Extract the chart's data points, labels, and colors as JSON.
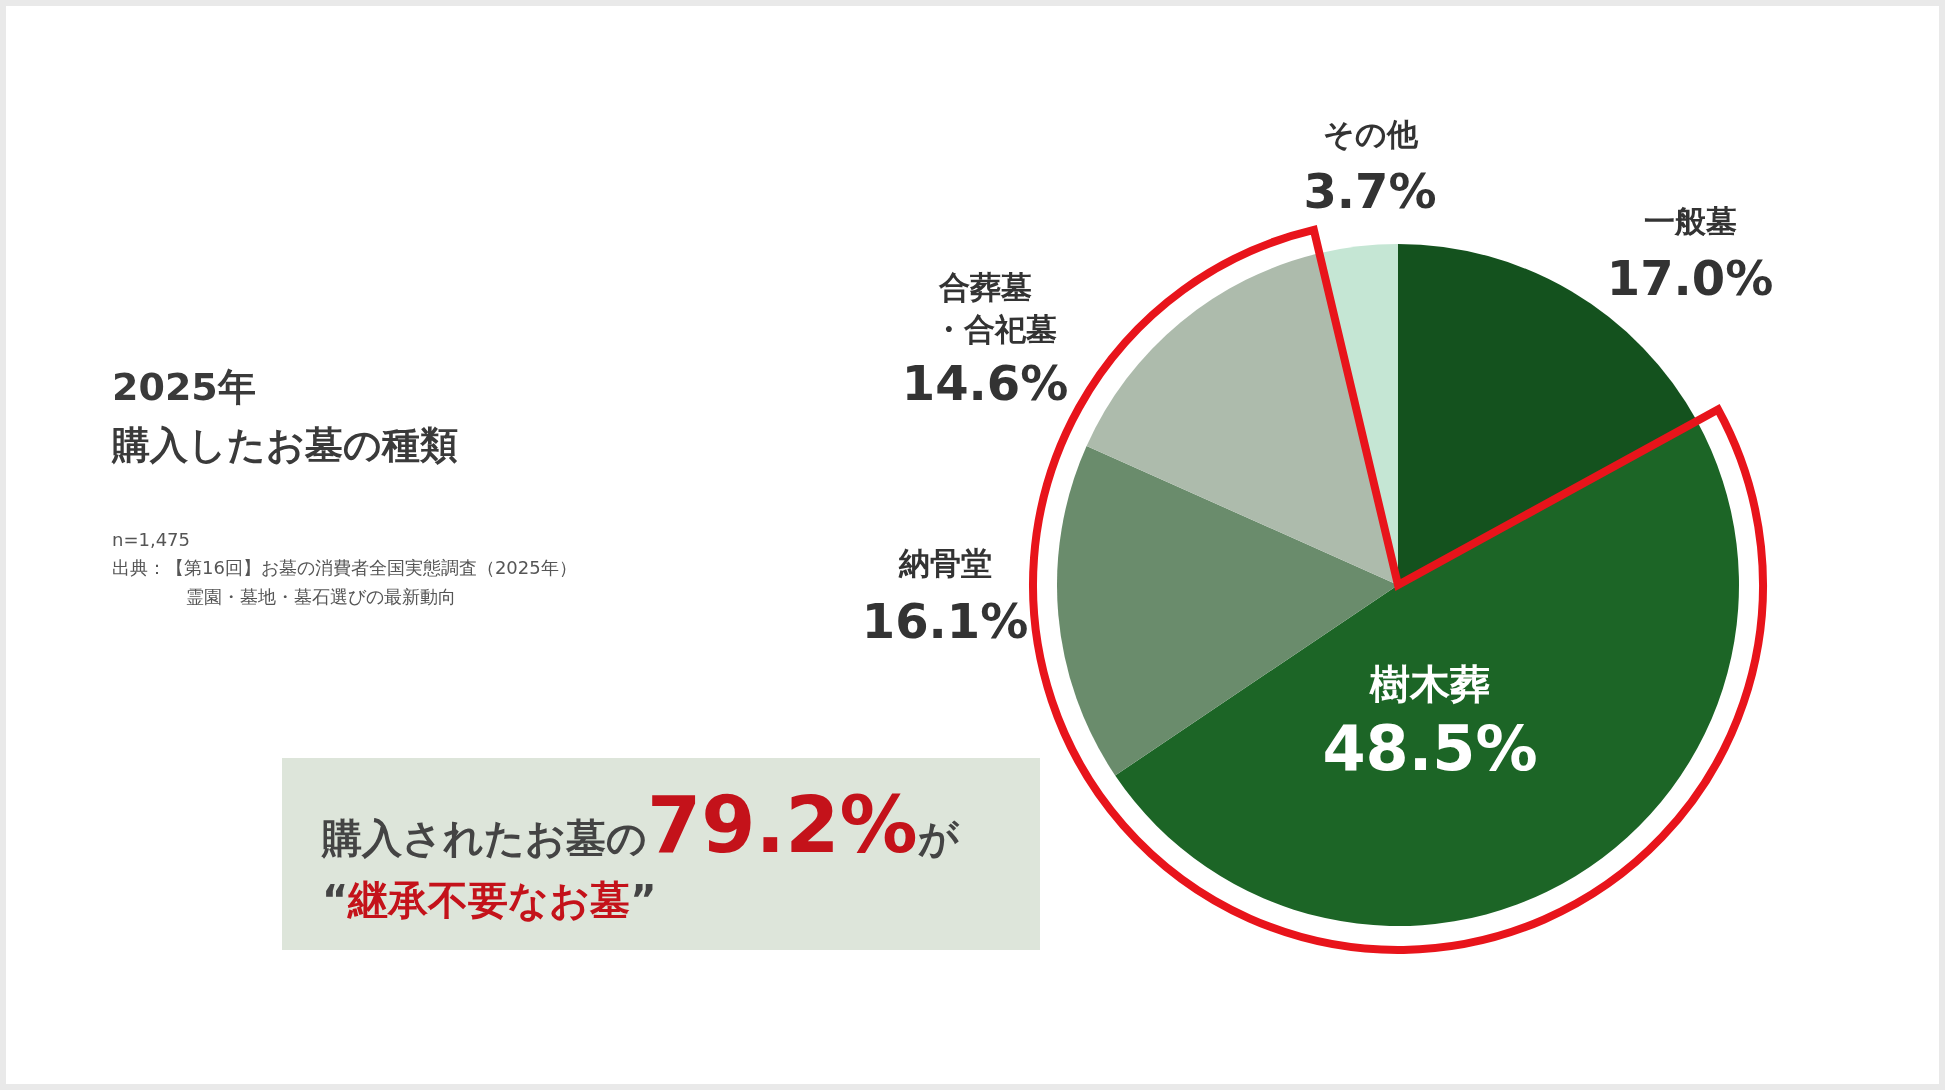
{
  "chart_data": {
    "type": "pie",
    "title": "2025年購入したお墓の種類",
    "categories": [
      "一般墓",
      "樹木葬",
      "納骨堂",
      "合葬墓・合祀墓",
      "その他"
    ],
    "values": [
      17.0,
      48.5,
      16.1,
      14.6,
      3.7
    ],
    "value_labels": [
      "17.0%",
      "48.5%",
      "16.1%",
      "14.6%",
      "3.7%"
    ],
    "colors": [
      "#14521e",
      "#1c6526",
      "#6a8c6c",
      "#adbbac",
      "#c5e6d4"
    ],
    "annotations": [
      "n=1,475",
      "出典：【第16回】お墓の消費者全国実態調査（2025年）霊園・墓地・墓石選びの最新動向",
      "購入されたお墓の79.2%が",
      "“継承不要なお墓”"
    ]
  }
}
